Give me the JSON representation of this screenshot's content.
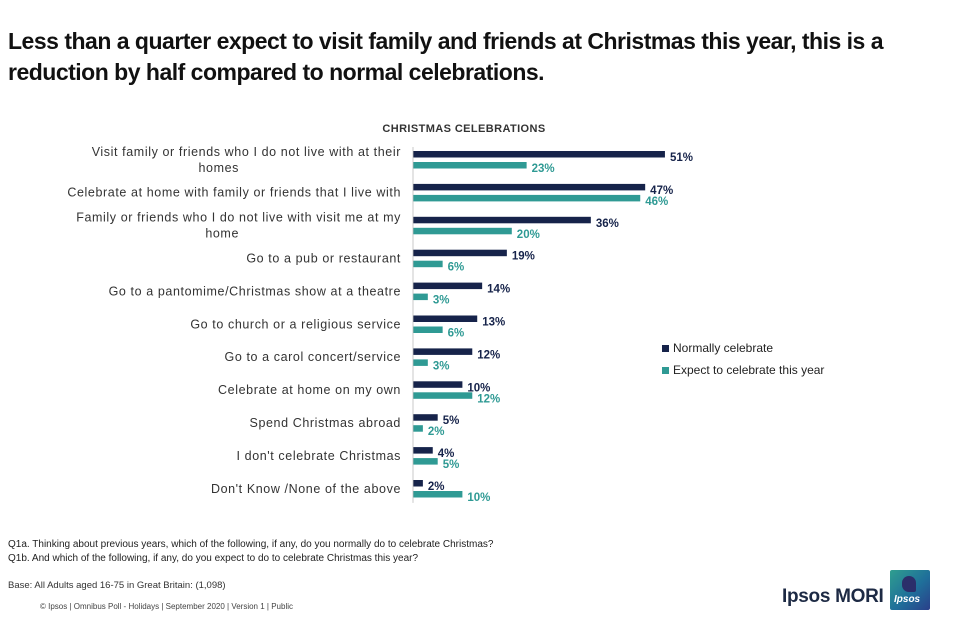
{
  "headline": "Less than a quarter expect to visit family and friends at Christmas this year, this is a reduction by half compared to normal celebrations.",
  "chart_data": {
    "type": "bar",
    "orientation": "horizontal",
    "title": "CHRISTMAS CELEBRATIONS",
    "categories": [
      [
        "Visit family or friends who I do not live with at their",
        "homes"
      ],
      [
        "Celebrate at home with family or friends that I live with"
      ],
      [
        "Family or friends who I do not live with visit me at my",
        "home"
      ],
      [
        "Go to a pub or restaurant"
      ],
      [
        "Go to a pantomime/Christmas show at a theatre"
      ],
      [
        "Go to church or a religious service"
      ],
      [
        "Go to a carol concert/service"
      ],
      [
        "Celebrate at home on my own"
      ],
      [
        "Spend Christmas abroad"
      ],
      [
        "I don't celebrate Christmas"
      ],
      [
        "Don't Know /None of the above"
      ]
    ],
    "series": [
      {
        "name": "Normally celebrate",
        "color": "#16234a",
        "values": [
          51,
          47,
          36,
          19,
          14,
          13,
          12,
          10,
          5,
          4,
          2
        ]
      },
      {
        "name": "Expect to celebrate this year",
        "color": "#2f9a94",
        "values": [
          23,
          46,
          20,
          6,
          3,
          6,
          3,
          12,
          2,
          5,
          10
        ]
      }
    ],
    "value_suffix": "%",
    "xlim": [
      0,
      60
    ],
    "grid": false,
    "legend_position": "right"
  },
  "notes": [
    "Q1a. Thinking about previous years, which of the following, if any, do you normally do to celebrate Christmas?",
    "Q1b. And which of the following, if any, do you expect to do to celebrate Christmas this year?"
  ],
  "base": "Base: All Adults aged 16-75 in Great Britain: (1,098)",
  "footer": "© Ipsos | Omnibus Poll - Holidays | September 2020 | Version 1 | Public",
  "brand": {
    "name": "Ipsos MORI",
    "logo_text": "Ipsos"
  }
}
